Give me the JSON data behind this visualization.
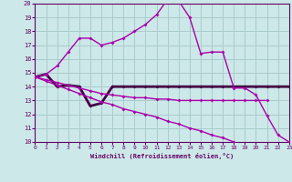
{
  "xlabel": "Windchill (Refroidissement éolien,°C)",
  "xlim": [
    0,
    23
  ],
  "ylim": [
    10,
    20
  ],
  "xticks": [
    0,
    1,
    2,
    3,
    4,
    5,
    6,
    7,
    8,
    9,
    10,
    11,
    12,
    13,
    14,
    15,
    16,
    17,
    18,
    19,
    20,
    21,
    22,
    23
  ],
  "yticks": [
    10,
    11,
    12,
    13,
    14,
    15,
    16,
    17,
    18,
    19,
    20
  ],
  "bg_color": "#cce8e8",
  "line_color": "#aa00aa",
  "ref_line_color": "#440044",
  "grid_color": "#aacccc",
  "line_peak_x": [
    0,
    1,
    2,
    3,
    4,
    5,
    6,
    7,
    8,
    9,
    10,
    11,
    12,
    13,
    14,
    15,
    16,
    17,
    18,
    19,
    20,
    21,
    22,
    23
  ],
  "line_peak_y": [
    14.7,
    14.9,
    15.5,
    16.5,
    17.5,
    17.5,
    17.0,
    17.2,
    17.5,
    18.0,
    18.5,
    19.2,
    20.3,
    20.2,
    19.0,
    16.4,
    16.5,
    16.5,
    13.9,
    13.9,
    13.4,
    11.9,
    10.5,
    10.0
  ],
  "line_ref_x": [
    0,
    1,
    2,
    3,
    4,
    5,
    6,
    7,
    8,
    9,
    10,
    11,
    12,
    13,
    14,
    15,
    16,
    17,
    18,
    19,
    20,
    21,
    22,
    23
  ],
  "line_ref_y": [
    14.7,
    14.9,
    14.0,
    14.1,
    14.0,
    12.6,
    12.8,
    14.0,
    14.0,
    14.0,
    14.0,
    14.0,
    14.0,
    14.0,
    14.0,
    14.0,
    14.0,
    14.0,
    14.0,
    14.0,
    14.0,
    14.0,
    14.0,
    14.0
  ],
  "line_down_x": [
    0,
    1,
    2,
    3,
    4,
    5,
    6,
    7,
    8,
    9,
    10,
    11,
    12,
    13,
    14,
    15,
    16,
    17,
    18
  ],
  "line_down_y": [
    14.7,
    14.4,
    14.1,
    13.8,
    13.5,
    13.2,
    12.9,
    12.7,
    12.4,
    12.2,
    12.0,
    11.8,
    11.5,
    11.3,
    11.0,
    10.8,
    10.5,
    10.3,
    10.0
  ],
  "line_flat_x": [
    0,
    1,
    2,
    3,
    4,
    5,
    6,
    7,
    8,
    9,
    10,
    11,
    12,
    13,
    14,
    15,
    16,
    17,
    18,
    19,
    20,
    21
  ],
  "line_flat_y": [
    14.7,
    14.5,
    14.3,
    14.1,
    13.9,
    13.7,
    13.5,
    13.4,
    13.3,
    13.2,
    13.2,
    13.1,
    13.1,
    13.0,
    13.0,
    13.0,
    13.0,
    13.0,
    13.0,
    13.0,
    13.0,
    13.0
  ]
}
